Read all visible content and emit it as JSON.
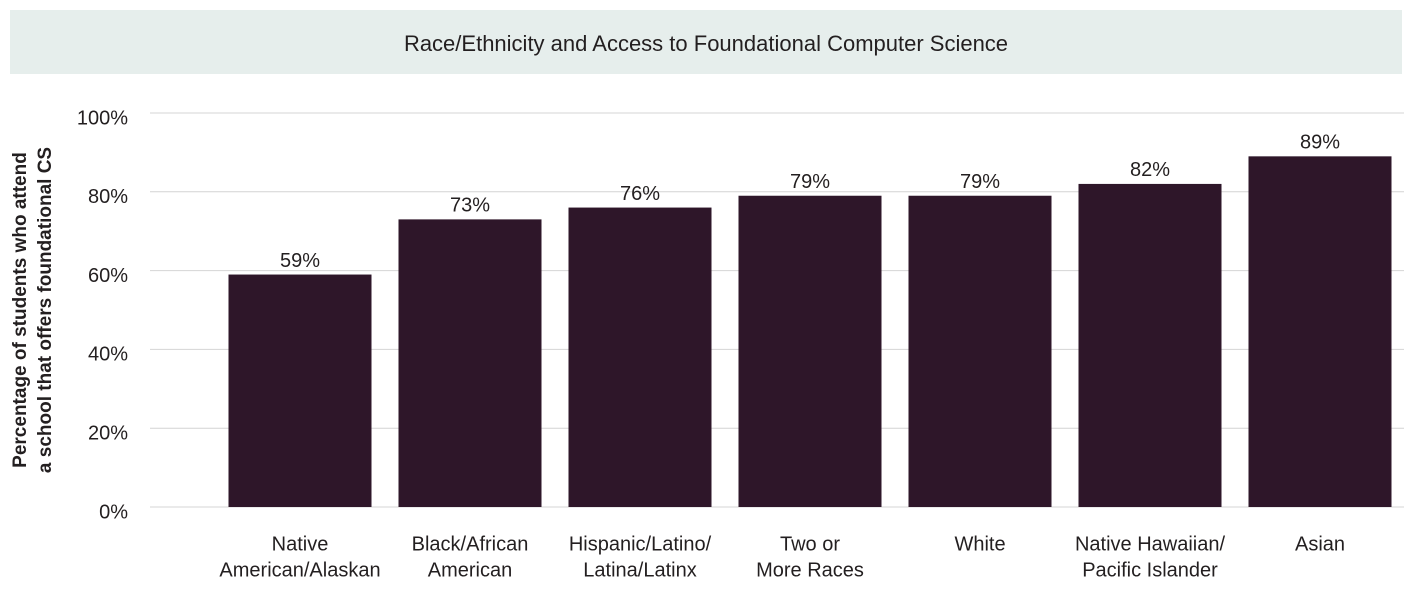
{
  "chart_data": {
    "type": "bar",
    "title": "Race/Ethnicity and Access to Foundational Computer Science",
    "ylabel": [
      "Percentage of students who attend",
      "a school that offers foundational CS"
    ],
    "categories": [
      [
        "Native",
        "American/Alaskan"
      ],
      [
        "Black/African",
        "American"
      ],
      [
        "Hispanic/Latino/",
        "Latina/Latinx"
      ],
      [
        "Two or",
        "More Races"
      ],
      [
        "White"
      ],
      [
        "Native Hawaiian/",
        "Pacific Islander"
      ],
      [
        "Asian"
      ]
    ],
    "values": [
      59,
      73,
      76,
      79,
      79,
      82,
      89
    ],
    "value_labels": [
      "59%",
      "73%",
      "76%",
      "79%",
      "79%",
      "82%",
      "89%"
    ],
    "color": "#2e1629",
    "ylim": [
      0,
      100
    ],
    "yticks": [
      {
        "value": 0,
        "label": "0%"
      },
      {
        "value": 20,
        "label": "20%"
      },
      {
        "value": 40,
        "label": "40%"
      },
      {
        "value": 60,
        "label": "60%"
      },
      {
        "value": 80,
        "label": "80%"
      },
      {
        "value": 100,
        "label": "100%"
      }
    ],
    "grid": true
  }
}
